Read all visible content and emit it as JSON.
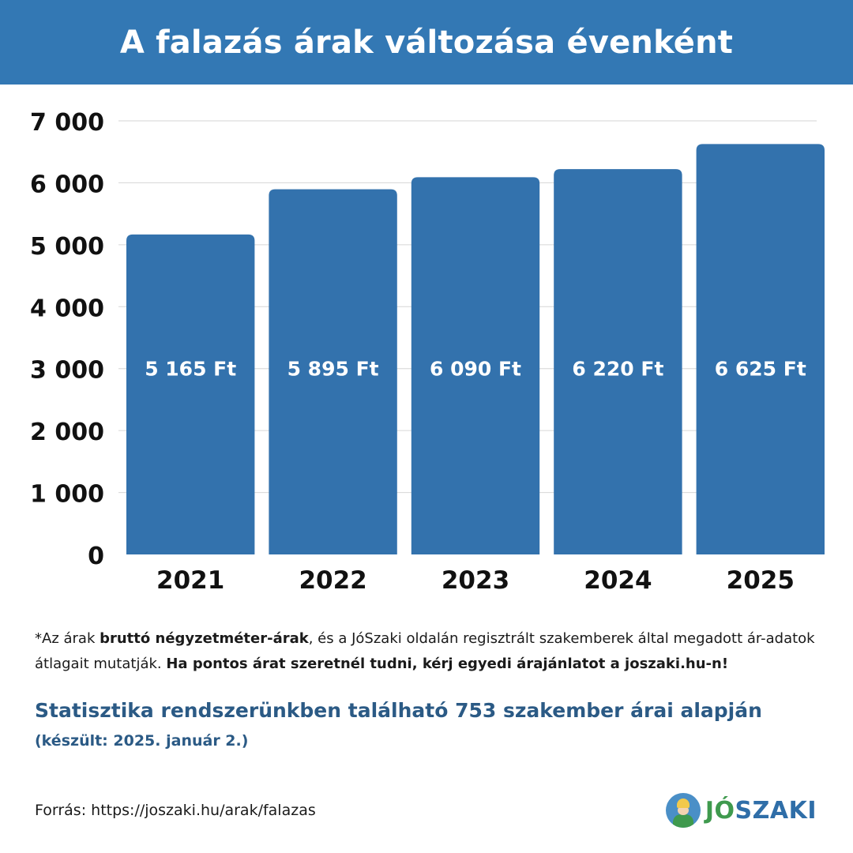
{
  "title": "A falazás árak változása évenként",
  "chart_data": {
    "type": "bar",
    "categories": [
      "2021",
      "2022",
      "2023",
      "2024",
      "2025"
    ],
    "values": [
      5165,
      5895,
      6090,
      6220,
      6625
    ],
    "data_labels": [
      "5 165 Ft",
      "5 895 Ft",
      "6 090 Ft",
      "6 220 Ft",
      "6 625 Ft"
    ],
    "yticks": [
      0,
      1000,
      2000,
      3000,
      4000,
      5000,
      6000,
      7000
    ],
    "ytick_labels": [
      "0",
      "1 000",
      "2 000",
      "3 000",
      "4 000",
      "5 000",
      "6 000",
      "7 000"
    ],
    "ylim": [
      0,
      7000
    ],
    "grid": true,
    "bar_color": "#3372ad"
  },
  "note": {
    "p1": "*Az árak ",
    "b1": "bruttó négyzetméter-árak",
    "p2": ", és a JóSzaki oldalán regisztrált szakemberek által megadott ár-adatok átlagait mutatják. ",
    "b2": "Ha pontos árat szeretnél tudni, kérj egyedi árajánlatot a joszaki.hu-n!"
  },
  "stats": {
    "main": "Statisztika rendszerünkben található 753 szakember árai alapján",
    "date": "(készült: 2025. január 2.)"
  },
  "source": "Forrás: https://joszaki.hu/arak/falazas",
  "logo": {
    "part1": "JÓ",
    "part2": "SZAKI"
  }
}
